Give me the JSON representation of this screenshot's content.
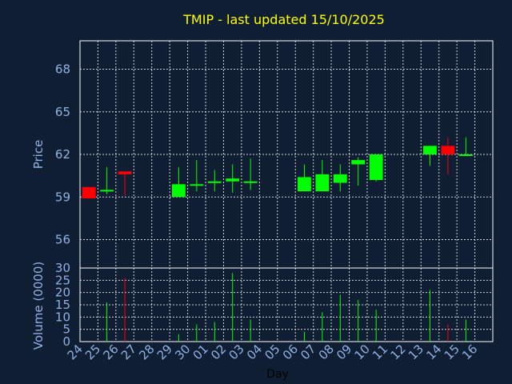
{
  "chart_data": [
    {
      "type": "candlestick",
      "title": "TMIP - last updated 15/10/2025",
      "ylabel": "Price",
      "ylim": [
        54,
        70
      ],
      "yticks": [
        56,
        59,
        62,
        65,
        68
      ],
      "grid": true,
      "colors": {
        "up": "#00ff00",
        "down": "#ff0000"
      },
      "candles": [
        {
          "day": "24",
          "open": 59.7,
          "close": 58.9,
          "high": 59.7,
          "low": 58.9
        },
        {
          "day": "25",
          "open": 59.4,
          "close": 59.5,
          "high": 61.1,
          "low": 59.2
        },
        {
          "day": "26",
          "open": 60.8,
          "close": 60.6,
          "high": 60.8,
          "low": 59.1
        },
        {
          "day": "29",
          "open": 59.0,
          "close": 59.9,
          "high": 61.1,
          "low": 59.0
        },
        {
          "day": "30",
          "open": 59.8,
          "close": 59.9,
          "high": 61.6,
          "low": 59.4
        },
        {
          "day": "01",
          "open": 60.0,
          "close": 60.1,
          "high": 60.9,
          "low": 59.4
        },
        {
          "day": "02",
          "open": 60.1,
          "close": 60.3,
          "high": 61.3,
          "low": 59.3
        },
        {
          "day": "03",
          "open": 60.0,
          "close": 60.1,
          "high": 61.7,
          "low": 59.5
        },
        {
          "day": "06",
          "open": 59.4,
          "close": 60.4,
          "high": 61.3,
          "low": 59.4
        },
        {
          "day": "07",
          "open": 59.4,
          "close": 60.6,
          "high": 61.6,
          "low": 59.4
        },
        {
          "day": "08",
          "open": 60.0,
          "close": 60.6,
          "high": 61.3,
          "low": 59.4
        },
        {
          "day": "09",
          "open": 61.3,
          "close": 61.6,
          "high": 61.8,
          "low": 59.8
        },
        {
          "day": "10",
          "open": 60.2,
          "close": 62.0,
          "high": 62.0,
          "low": 60.1
        },
        {
          "day": "13",
          "open": 62.0,
          "close": 62.6,
          "high": 62.6,
          "low": 61.2
        },
        {
          "day": "14",
          "open": 62.6,
          "close": 62.0,
          "high": 63.2,
          "low": 60.6
        },
        {
          "day": "15",
          "open": 61.9,
          "close": 62.0,
          "high": 63.2,
          "low": 61.9
        }
      ]
    },
    {
      "type": "bar",
      "ylabel": "Volume (0000)",
      "xlabel": "Day",
      "ylim": [
        0,
        30
      ],
      "yticks": [
        0,
        5,
        10,
        15,
        20,
        25,
        30
      ],
      "grid": true,
      "categories": [
        "24",
        "25",
        "26",
        "27",
        "28",
        "29",
        "30",
        "01",
        "02",
        "03",
        "04",
        "05",
        "06",
        "07",
        "08",
        "09",
        "10",
        "11",
        "12",
        "13",
        "14",
        "15",
        "16"
      ],
      "volumes": [
        {
          "day": "25",
          "value": 16,
          "color": "#00ff00"
        },
        {
          "day": "26",
          "value": 26,
          "color": "#ff0000"
        },
        {
          "day": "29",
          "value": 3,
          "color": "#00ff00"
        },
        {
          "day": "30",
          "value": 7,
          "color": "#00ff00"
        },
        {
          "day": "01",
          "value": 8,
          "color": "#00ff00"
        },
        {
          "day": "02",
          "value": 28,
          "color": "#00ff00"
        },
        {
          "day": "03",
          "value": 9,
          "color": "#00ff00"
        },
        {
          "day": "06",
          "value": 4,
          "color": "#00ff00"
        },
        {
          "day": "07",
          "value": 12,
          "color": "#00ff00"
        },
        {
          "day": "08",
          "value": 19,
          "color": "#00ff00"
        },
        {
          "day": "09",
          "value": 17,
          "color": "#00ff00"
        },
        {
          "day": "10",
          "value": 13,
          "color": "#00ff00"
        },
        {
          "day": "13",
          "value": 21,
          "color": "#00ff00"
        },
        {
          "day": "14",
          "value": 7,
          "color": "#ff0000"
        },
        {
          "day": "15",
          "value": 9,
          "color": "#00ff00"
        }
      ]
    }
  ]
}
